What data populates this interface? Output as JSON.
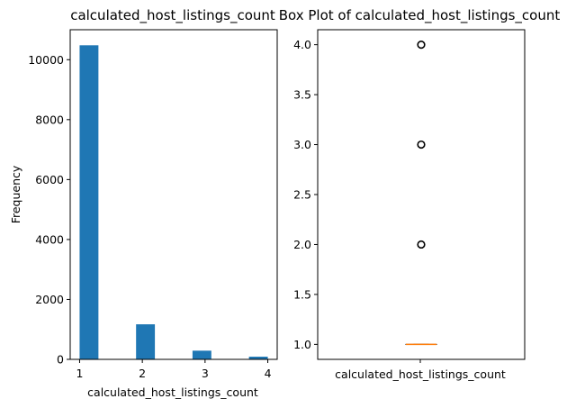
{
  "chart_data": [
    {
      "type": "bar",
      "title": "calculated_host_listings_count",
      "xlabel": "calculated_host_listings_count",
      "ylabel": "Frequency",
      "bin_width": 0.3,
      "bins": [
        {
          "x0": 1.0,
          "count": 10480
        },
        {
          "x0": 1.3,
          "count": 0
        },
        {
          "x0": 1.6,
          "count": 0
        },
        {
          "x0": 1.9,
          "count": 1170
        },
        {
          "x0": 2.2,
          "count": 0
        },
        {
          "x0": 2.5,
          "count": 0
        },
        {
          "x0": 2.8,
          "count": 290
        },
        {
          "x0": 3.1,
          "count": 0
        },
        {
          "x0": 3.4,
          "count": 0
        },
        {
          "x0": 3.7,
          "count": 90
        }
      ],
      "xlim": [
        0.85,
        4.15
      ],
      "ylim": [
        0,
        11000
      ],
      "xticks": [
        "1",
        "2",
        "3",
        "4"
      ],
      "yticks": [
        "0",
        "2000",
        "4000",
        "6000",
        "8000",
        "10000"
      ],
      "bar_color": "#1f77b4"
    },
    {
      "type": "box",
      "title": "Box Plot of calculated_host_listings_count",
      "category": "calculated_host_listings_count",
      "median": 1.0,
      "q1": 1.0,
      "q3": 1.0,
      "whisker_low": 1.0,
      "whisker_high": 1.0,
      "outliers": [
        2.0,
        3.0,
        4.0
      ],
      "ylim": [
        0.85,
        4.15
      ],
      "yticks": [
        "1.0",
        "1.5",
        "2.0",
        "2.5",
        "3.0",
        "3.5",
        "4.0"
      ],
      "median_color": "#ff7f0e"
    }
  ]
}
